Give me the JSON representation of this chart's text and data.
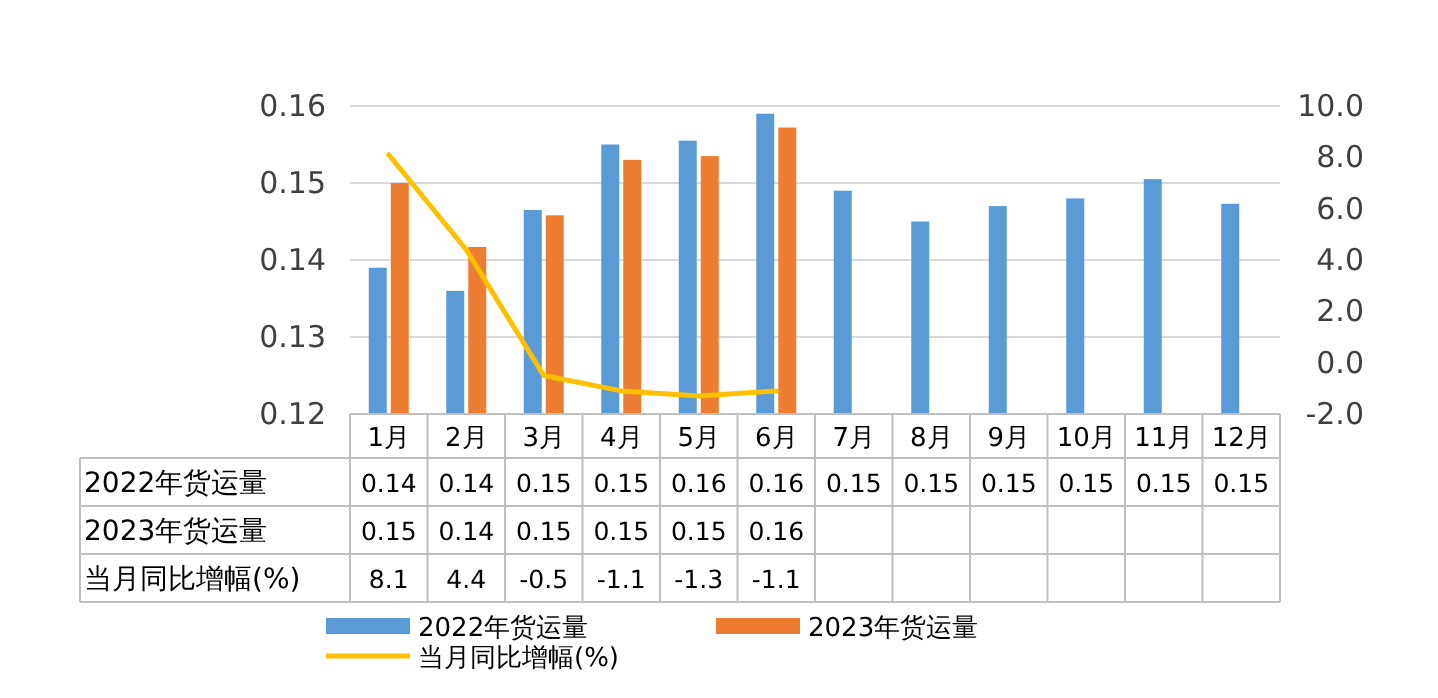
{
  "chart_data": {
    "type": "bar",
    "categories": [
      "1月",
      "2月",
      "3月",
      "4月",
      "5月",
      "6月",
      "7月",
      "8月",
      "9月",
      "10月",
      "11月",
      "12月"
    ],
    "series": [
      {
        "name": "2022年货运量",
        "color": "#5b9bd5",
        "values": [
          0.139,
          0.136,
          0.1465,
          0.155,
          0.1555,
          0.159,
          0.149,
          0.145,
          0.147,
          0.148,
          0.1505,
          0.1473
        ],
        "value_labels": [
          "0.14",
          "0.14",
          "0.15",
          "0.15",
          "0.16",
          "0.16",
          "0.15",
          "0.15",
          "0.15",
          "0.15",
          "0.15",
          "0.15"
        ]
      },
      {
        "name": "2023年货运量",
        "color": "#ed7d31",
        "values": [
          0.15,
          0.1417,
          0.1458,
          0.153,
          0.1535,
          0.1572,
          null,
          null,
          null,
          null,
          null,
          null
        ],
        "value_labels": [
          "0.15",
          "0.14",
          "0.15",
          "0.15",
          "0.15",
          "0.16",
          null,
          null,
          null,
          null,
          null,
          null
        ]
      },
      {
        "name": "当月同比增幅(%)",
        "type": "line",
        "axis": "y2",
        "color": "#ffc000",
        "values": [
          8.1,
          4.4,
          -0.5,
          -1.1,
          -1.3,
          -1.1,
          null,
          null,
          null,
          null,
          null,
          null
        ],
        "value_labels": [
          "8.1",
          "4.4",
          "-0.5",
          "-1.1",
          "-1.3",
          "-1.1",
          null,
          null,
          null,
          null,
          null,
          null
        ]
      }
    ],
    "ylim": [
      0.12,
      0.16
    ],
    "yticks": [
      0.12,
      0.13,
      0.14,
      0.15,
      0.16
    ],
    "y2lim": [
      -2,
      10
    ],
    "y2ticks": [
      {
        "value": -2,
        "label": "-2.0"
      },
      {
        "value": 0,
        "label": "0.0"
      },
      {
        "value": 2,
        "label": "2.0"
      },
      {
        "value": 4,
        "label": "4.0"
      },
      {
        "value": 6,
        "label": "6.0"
      },
      {
        "value": 8,
        "label": "8.0"
      },
      {
        "value": 10,
        "label": "10.0"
      }
    ],
    "grid": "y",
    "legend": "bottom"
  }
}
